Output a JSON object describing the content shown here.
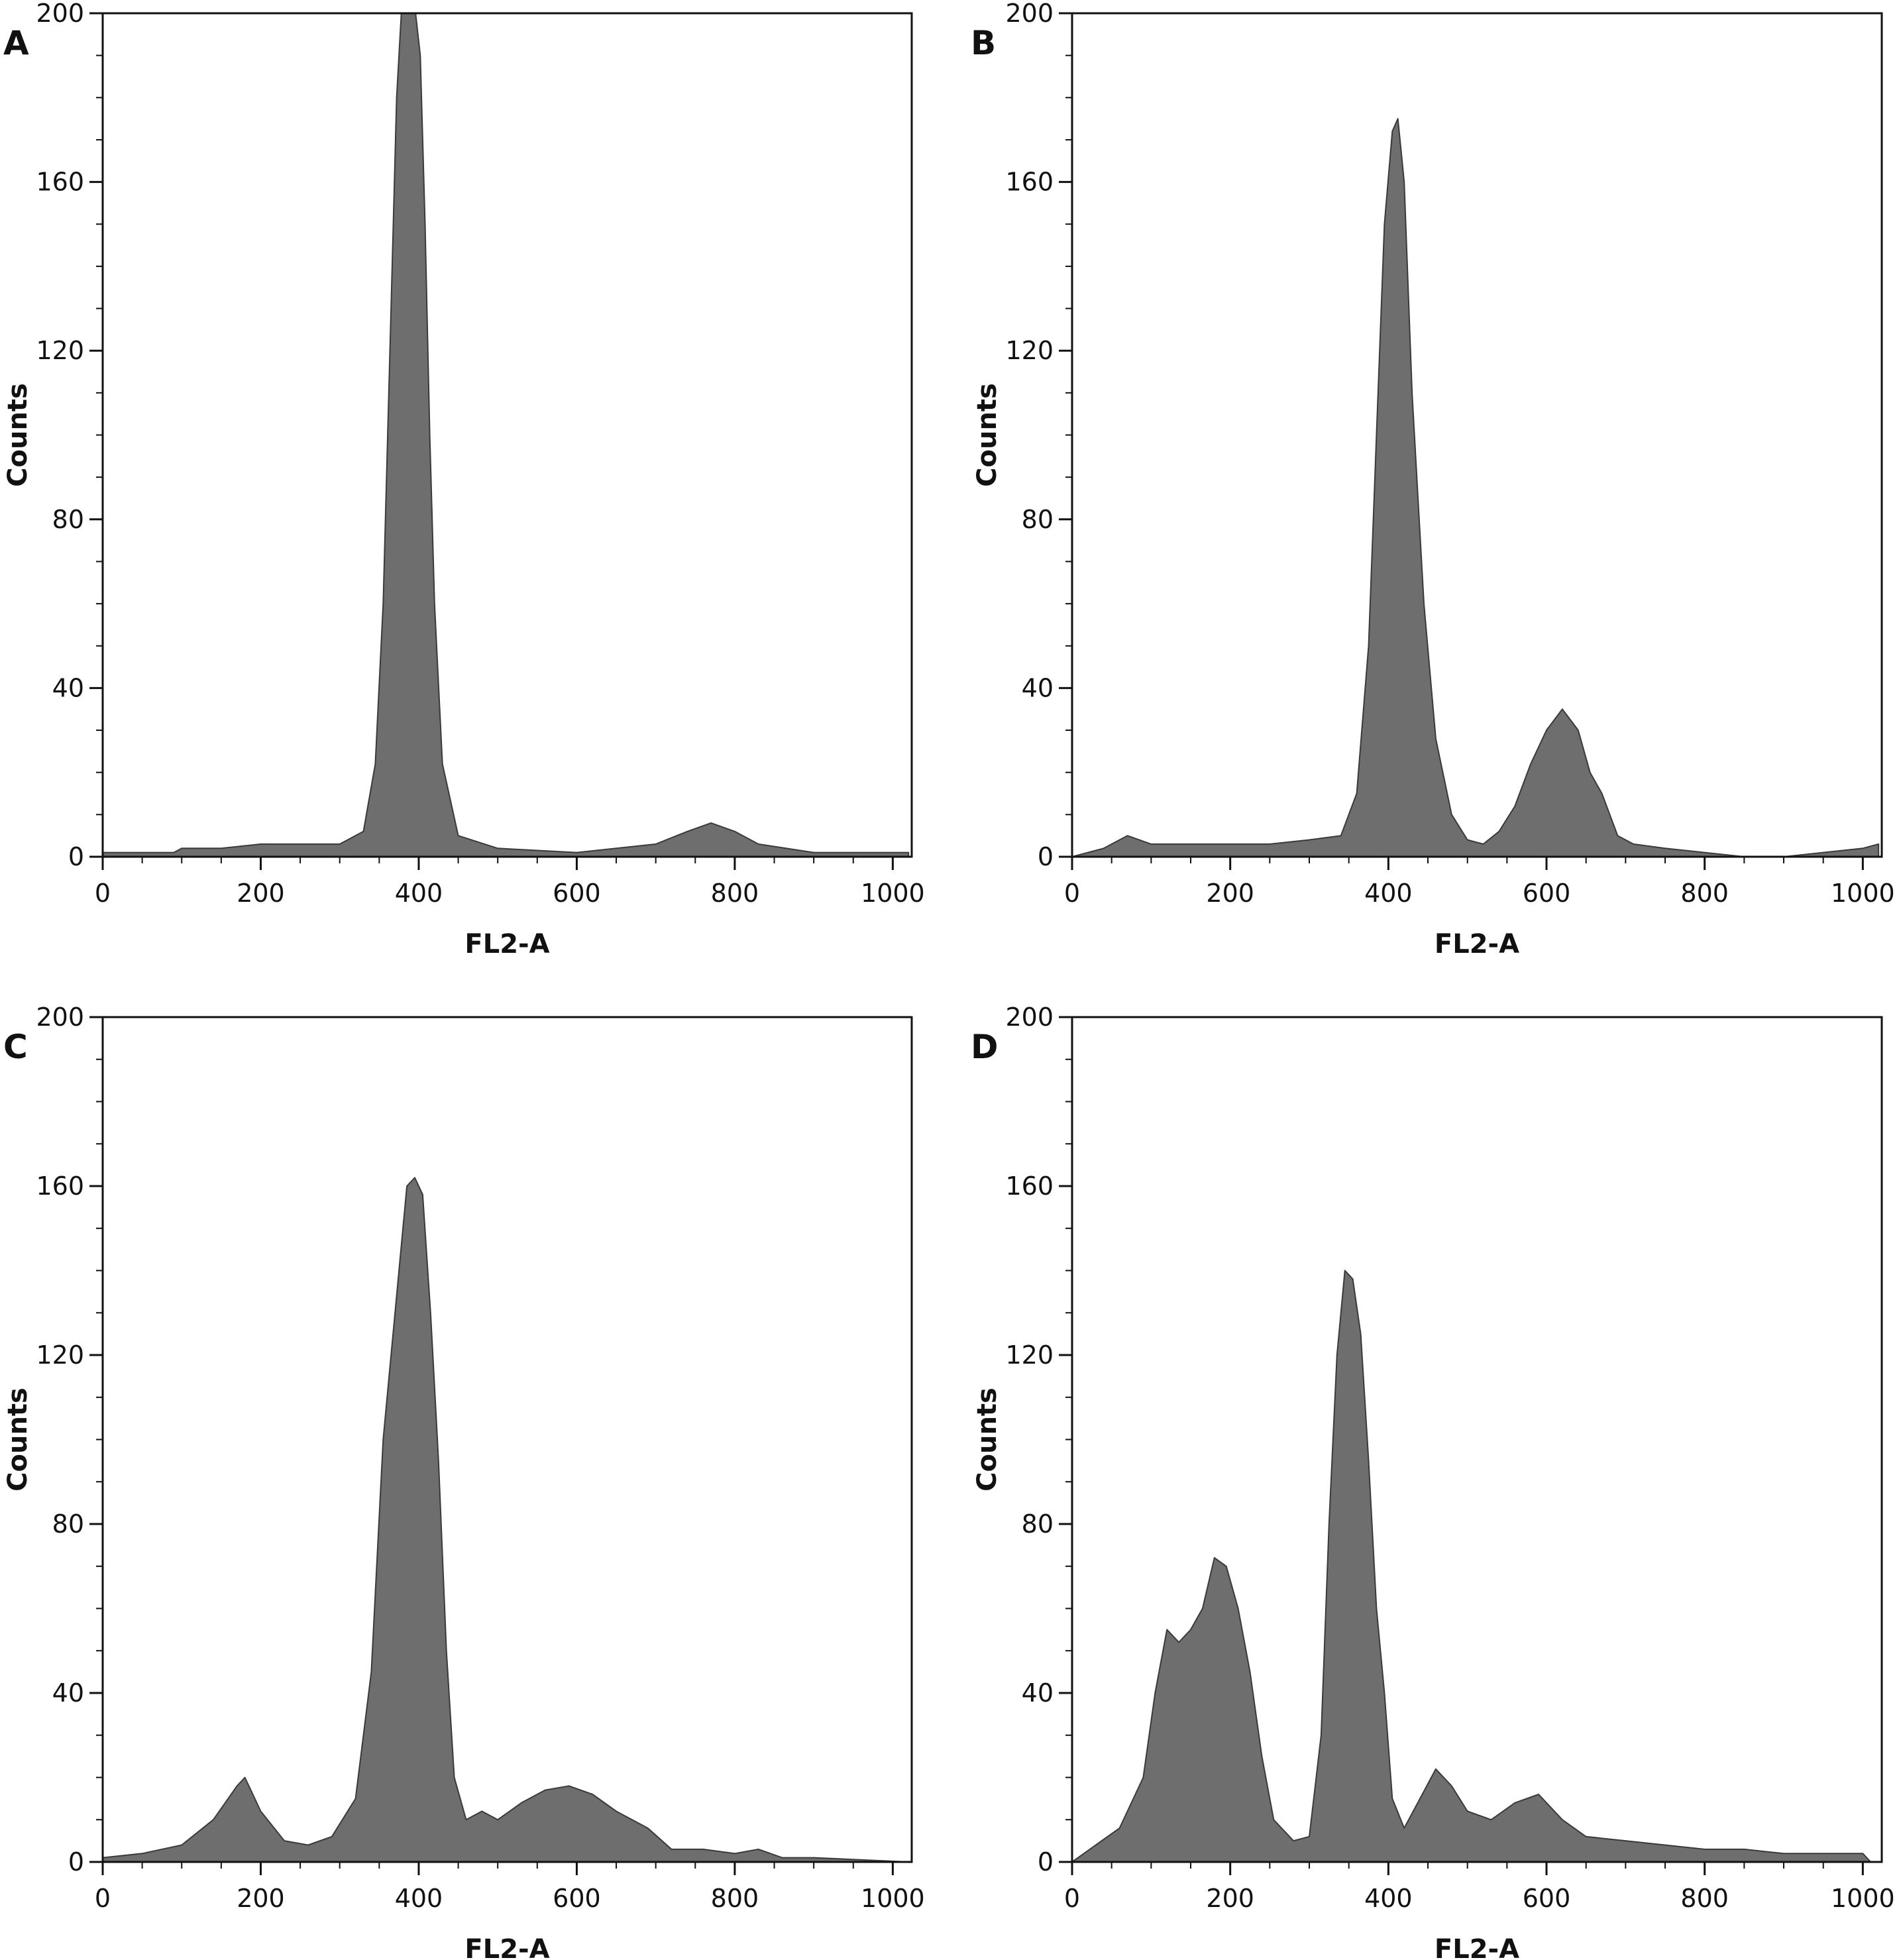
{
  "chart_data": [
    {
      "panel_label": "A",
      "type": "area",
      "xlabel": "FL2-A",
      "ylabel": "Counts",
      "xlim": [
        0,
        1024
      ],
      "ylim": [
        0,
        200
      ],
      "xticks": [
        0,
        200,
        400,
        600,
        800,
        1000
      ],
      "yticks": [
        0,
        40,
        80,
        120,
        160,
        200
      ],
      "fill_color": "#6e6e6e",
      "x": [
        0,
        90,
        100,
        150,
        200,
        240,
        300,
        330,
        345,
        355,
        365,
        372,
        378,
        384,
        390,
        396,
        402,
        408,
        414,
        420,
        430,
        450,
        500,
        600,
        700,
        740,
        770,
        800,
        830,
        900,
        1020
      ],
      "y": [
        1,
        1,
        2,
        2,
        3,
        3,
        3,
        6,
        22,
        60,
        130,
        180,
        200,
        200,
        200,
        200,
        190,
        150,
        100,
        60,
        22,
        5,
        2,
        1,
        3,
        6,
        8,
        6,
        3,
        1,
        1
      ]
    },
    {
      "panel_label": "B",
      "type": "area",
      "xlabel": "FL2-A",
      "ylabel": "Counts",
      "xlim": [
        0,
        1024
      ],
      "ylim": [
        0,
        200
      ],
      "xticks": [
        0,
        200,
        400,
        600,
        800,
        1000
      ],
      "yticks": [
        0,
        40,
        80,
        120,
        160,
        200
      ],
      "fill_color": "#6e6e6e",
      "x": [
        0,
        40,
        70,
        100,
        150,
        200,
        250,
        300,
        340,
        360,
        375,
        385,
        395,
        405,
        412,
        420,
        430,
        445,
        460,
        480,
        500,
        520,
        540,
        560,
        580,
        600,
        620,
        640,
        655,
        670,
        690,
        710,
        750,
        800,
        850,
        900,
        950,
        1000,
        1020
      ],
      "y": [
        0,
        2,
        5,
        3,
        3,
        3,
        3,
        4,
        5,
        15,
        50,
        100,
        150,
        172,
        175,
        160,
        110,
        60,
        28,
        10,
        4,
        3,
        6,
        12,
        22,
        30,
        35,
        30,
        20,
        15,
        5,
        3,
        2,
        1,
        0,
        0,
        1,
        2,
        3
      ]
    },
    {
      "panel_label": "C",
      "type": "area",
      "xlabel": "FL2-A",
      "ylabel": "Counts",
      "xlim": [
        0,
        1024
      ],
      "ylim": [
        0,
        200
      ],
      "xticks": [
        0,
        200,
        400,
        600,
        800,
        1000
      ],
      "yticks": [
        0,
        40,
        80,
        120,
        160,
        200
      ],
      "fill_color": "#6e6e6e",
      "x": [
        0,
        50,
        100,
        140,
        170,
        180,
        200,
        230,
        260,
        290,
        320,
        340,
        355,
        370,
        385,
        395,
        405,
        415,
        425,
        435,
        445,
        460,
        480,
        500,
        530,
        560,
        590,
        620,
        650,
        690,
        720,
        760,
        800,
        830,
        860,
        900,
        1020
      ],
      "y": [
        1,
        2,
        4,
        10,
        18,
        20,
        12,
        5,
        4,
        6,
        15,
        45,
        100,
        130,
        160,
        162,
        158,
        130,
        95,
        50,
        20,
        10,
        12,
        10,
        14,
        17,
        18,
        16,
        12,
        8,
        3,
        3,
        2,
        3,
        1,
        1,
        0
      ]
    },
    {
      "panel_label": "D",
      "type": "area",
      "xlabel": "FL2-A",
      "ylabel": "Counts",
      "xlim": [
        0,
        1024
      ],
      "ylim": [
        0,
        200
      ],
      "xticks": [
        0,
        200,
        400,
        600,
        800,
        1000
      ],
      "yticks": [
        0,
        40,
        80,
        120,
        160,
        200
      ],
      "fill_color": "#6e6e6e",
      "x": [
        0,
        30,
        60,
        90,
        105,
        120,
        135,
        150,
        165,
        180,
        195,
        210,
        225,
        240,
        255,
        265,
        280,
        300,
        315,
        325,
        335,
        345,
        355,
        365,
        375,
        385,
        395,
        405,
        420,
        440,
        460,
        480,
        500,
        530,
        560,
        590,
        620,
        650,
        700,
        750,
        800,
        850,
        900,
        950,
        1000,
        1010
      ],
      "y": [
        0,
        4,
        8,
        20,
        40,
        55,
        52,
        55,
        60,
        72,
        70,
        60,
        45,
        25,
        10,
        8,
        5,
        6,
        30,
        80,
        120,
        140,
        138,
        125,
        95,
        60,
        40,
        15,
        8,
        15,
        22,
        18,
        12,
        10,
        14,
        16,
        10,
        6,
        5,
        4,
        3,
        3,
        2,
        2,
        2,
        0
      ]
    }
  ]
}
